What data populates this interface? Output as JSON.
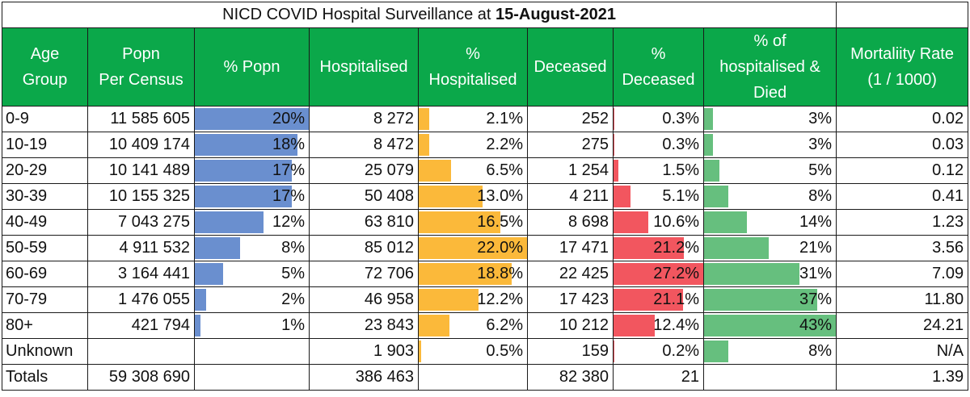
{
  "title_prefix": "NICD COVID Hospital Surveillance at ",
  "title_date": "15-August-2021",
  "headers": {
    "age_group": [
      "Age",
      "Group"
    ],
    "popn": [
      "Popn",
      "Per Census"
    ],
    "pct_popn": [
      "% Popn"
    ],
    "hospitalised": [
      "Hospitalised"
    ],
    "pct_hosp": [
      "%",
      "Hospitalised"
    ],
    "deceased": [
      "Deceased"
    ],
    "pct_deceased": [
      "%",
      "Deceased"
    ],
    "pct_hosp_died": [
      "% of",
      "hospitalised &",
      "Died"
    ],
    "mortality": [
      "Mortaliity Rate",
      "(1 / 1000)"
    ]
  },
  "bar_colors": {
    "pct_popn": "#6a8fcf",
    "pct_hosp": "#fbb93a",
    "pct_deceased": "#f2565f",
    "pct_hosp_died": "#66bf7e"
  },
  "rows": [
    {
      "age": "0-9",
      "popn": "11 585 605",
      "pct_popn": "20%",
      "hosp": "8 272",
      "pct_hosp": "2.1%",
      "deceased": "252",
      "pct_deceased": "0.3%",
      "pct_hosp_died": "3%",
      "mortality": "0.02"
    },
    {
      "age": "10-19",
      "popn": "10 409 174",
      "pct_popn": "18%",
      "hosp": "8 472",
      "pct_hosp": "2.2%",
      "deceased": "275",
      "pct_deceased": "0.3%",
      "pct_hosp_died": "3%",
      "mortality": "0.03"
    },
    {
      "age": "20-29",
      "popn": "10 141 489",
      "pct_popn": "17%",
      "hosp": "25 079",
      "pct_hosp": "6.5%",
      "deceased": "1 254",
      "pct_deceased": "1.5%",
      "pct_hosp_died": "5%",
      "mortality": "0.12"
    },
    {
      "age": "30-39",
      "popn": "10 155 325",
      "pct_popn": "17%",
      "hosp": "50 408",
      "pct_hosp": "13.0%",
      "deceased": "4 211",
      "pct_deceased": "5.1%",
      "pct_hosp_died": "8%",
      "mortality": "0.41"
    },
    {
      "age": "40-49",
      "popn": "7 043 275",
      "pct_popn": "12%",
      "hosp": "63 810",
      "pct_hosp": "16.5%",
      "deceased": "8 698",
      "pct_deceased": "10.6%",
      "pct_hosp_died": "14%",
      "mortality": "1.23"
    },
    {
      "age": "50-59",
      "popn": "4 911 532",
      "pct_popn": "8%",
      "hosp": "85 012",
      "pct_hosp": "22.0%",
      "deceased": "17 471",
      "pct_deceased": "21.2%",
      "pct_hosp_died": "21%",
      "mortality": "3.56"
    },
    {
      "age": "60-69",
      "popn": "3 164 441",
      "pct_popn": "5%",
      "hosp": "72 706",
      "pct_hosp": "18.8%",
      "deceased": "22 425",
      "pct_deceased": "27.2%",
      "pct_hosp_died": "31%",
      "mortality": "7.09"
    },
    {
      "age": "70-79",
      "popn": "1 476 055",
      "pct_popn": "2%",
      "hosp": "46 958",
      "pct_hosp": "12.2%",
      "deceased": "17 423",
      "pct_deceased": "21.1%",
      "pct_hosp_died": "37%",
      "mortality": "11.80"
    },
    {
      "age": "80+",
      "popn": "421 794",
      "pct_popn": "1%",
      "hosp": "23 843",
      "pct_hosp": "6.2%",
      "deceased": "10 212",
      "pct_deceased": "12.4%",
      "pct_hosp_died": "43%",
      "mortality": "24.21"
    },
    {
      "age": "Unknown",
      "popn": "",
      "pct_popn": "",
      "hosp": "1 903",
      "pct_hosp": "0.5%",
      "deceased": "159",
      "pct_deceased": "0.2%",
      "pct_hosp_died": "8%",
      "mortality": "N/A"
    }
  ],
  "totals": {
    "label": "Totals",
    "popn": "59 308 690",
    "hosp": "386 463",
    "deceased": "82 380",
    "pct_deceased": "21",
    "mortality": "1.39"
  }
}
